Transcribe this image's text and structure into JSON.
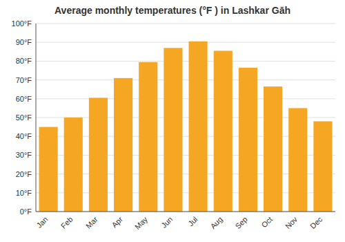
{
  "chart_data": {
    "type": "bar",
    "title": "Average monthly temperatures (°F ) in Lashkar Gāh",
    "categories": [
      "Jan",
      "Feb",
      "Mar",
      "Apr",
      "May",
      "Jun",
      "Jul",
      "Aug",
      "Sep",
      "Oct",
      "Nov",
      "Dec"
    ],
    "values": [
      45,
      50,
      60.5,
      71,
      79.5,
      87,
      90.5,
      85.5,
      76.5,
      66.5,
      55,
      48
    ],
    "color": "#F5A623",
    "ylim": [
      0,
      100
    ],
    "yticks": [
      {
        "value": 0,
        "label": "0°F"
      },
      {
        "value": 10,
        "label": "10°F"
      },
      {
        "value": 20,
        "label": "20°F"
      },
      {
        "value": 30,
        "label": "30°F"
      },
      {
        "value": 40,
        "label": "40°F"
      },
      {
        "value": 50,
        "label": "50°F"
      },
      {
        "value": 60,
        "label": "60°F"
      },
      {
        "value": 70,
        "label": "70°F"
      },
      {
        "value": 80,
        "label": "80°F"
      },
      {
        "value": 90,
        "label": "90°F"
      },
      {
        "value": 100,
        "label": "100°F"
      }
    ],
    "grid": true
  }
}
